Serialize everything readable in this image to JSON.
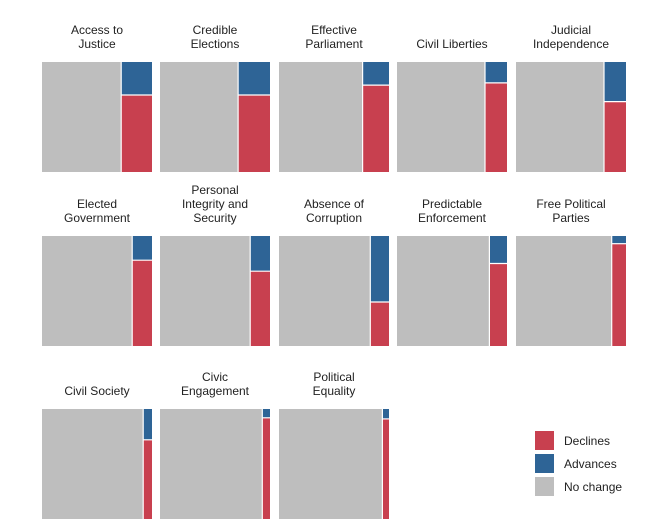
{
  "chart_data": {
    "type": "bar",
    "subtype": "stacked-proportion-small-multiples",
    "value_unit": "share of countries (0-1)",
    "colors": {
      "Declines": "#c8404f",
      "Advances": "#2e6496",
      "No change": "#bebebe"
    },
    "series_order": [
      "No change",
      "Declines",
      "Advances"
    ],
    "panels": [
      {
        "title": [
          "Access to",
          "Justice"
        ],
        "no_change": 0.72,
        "declines": 0.7,
        "advances": 0.3
      },
      {
        "title": [
          "Credible",
          "Elections"
        ],
        "no_change": 0.71,
        "declines": 0.7,
        "advances": 0.3
      },
      {
        "title": [
          "Effective",
          "Parliament"
        ],
        "no_change": 0.76,
        "declines": 0.79,
        "advances": 0.21
      },
      {
        "title": [
          "Civil Liberties"
        ],
        "no_change": 0.8,
        "declines": 0.81,
        "advances": 0.19
      },
      {
        "title": [
          "Judicial",
          "Independence"
        ],
        "no_change": 0.8,
        "declines": 0.64,
        "advances": 0.36
      },
      {
        "title": [
          "Elected",
          "Government"
        ],
        "no_change": 0.82,
        "declines": 0.78,
        "advances": 0.22
      },
      {
        "title": [
          "Personal",
          "Integrity and",
          "Security"
        ],
        "no_change": 0.82,
        "declines": 0.68,
        "advances": 0.32
      },
      {
        "title": [
          "Absence of",
          "Corruption"
        ],
        "no_change": 0.83,
        "declines": 0.4,
        "advances": 0.6
      },
      {
        "title": [
          "Predictable",
          "Enforcement"
        ],
        "no_change": 0.84,
        "declines": 0.75,
        "advances": 0.25
      },
      {
        "title": [
          "Free Political",
          "Parties"
        ],
        "no_change": 0.87,
        "declines": 0.93,
        "advances": 0.07
      },
      {
        "title": [
          "Civil Society"
        ],
        "no_change": 0.92,
        "declines": 0.72,
        "advances": 0.28
      },
      {
        "title": [
          "Civic",
          "Engagement"
        ],
        "no_change": 0.93,
        "declines": 0.92,
        "advances": 0.08
      },
      {
        "title": [
          "Political",
          "Equality"
        ],
        "no_change": 0.94,
        "declines": 0.91,
        "advances": 0.09
      }
    ],
    "legend": {
      "position": "bottom-right",
      "items": [
        {
          "label": "Declines",
          "color": "#c8404f"
        },
        {
          "label": "Advances",
          "color": "#2e6496"
        },
        {
          "label": "No change",
          "color": "#bebebe"
        }
      ]
    }
  }
}
